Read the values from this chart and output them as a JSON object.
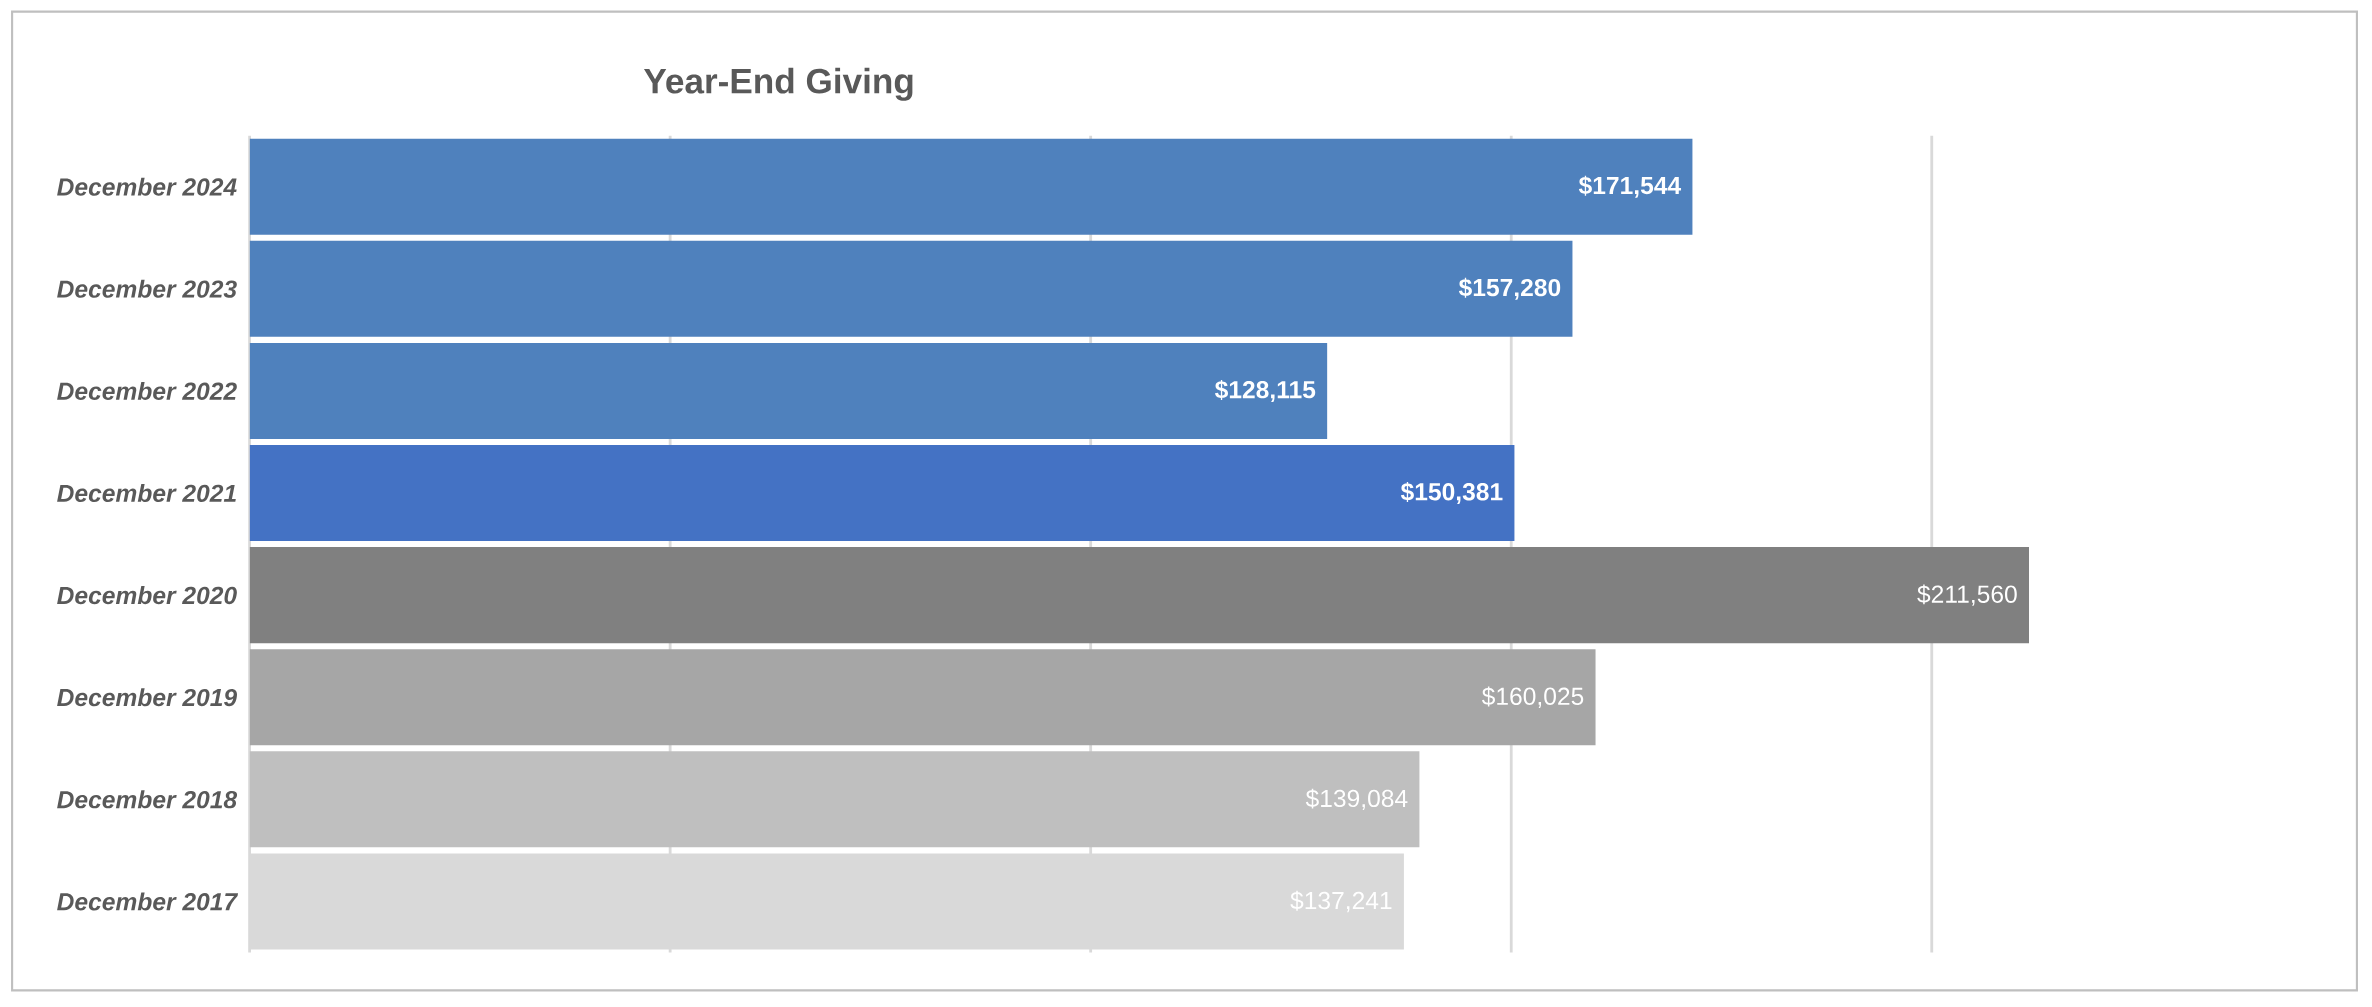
{
  "chart_data": {
    "type": "bar",
    "orientation": "horizontal",
    "title": "Year-End Giving",
    "categories": [
      "December 2024",
      "December 2023",
      "December 2022",
      "December 2021",
      "December 2020",
      "December 2019",
      "December 2018",
      "December 2017"
    ],
    "values": [
      171544,
      157280,
      128115,
      150381,
      211560,
      160025,
      139084,
      137241
    ],
    "value_labels": [
      "$171,544",
      "$157,280",
      "$128,115",
      "$150,381",
      "$211,560",
      "$160,025",
      "$139,084",
      "$137,241"
    ],
    "colors": [
      "#4f81bd",
      "#4f81bd",
      "#4f81bd",
      "#4472c4",
      "#808080",
      "#a6a6a6",
      "#bfbfbf",
      "#d9d9d9"
    ],
    "xlim": [
      0,
      250000
    ],
    "xticks": [
      {
        "value": 0,
        "label": null
      },
      {
        "value": 50000,
        "label": null
      },
      {
        "value": 100000,
        "label": null
      },
      {
        "value": 150000,
        "label": null
      },
      {
        "value": 200000,
        "label": null
      }
    ],
    "grid": "x",
    "tick_labels": "y"
  }
}
